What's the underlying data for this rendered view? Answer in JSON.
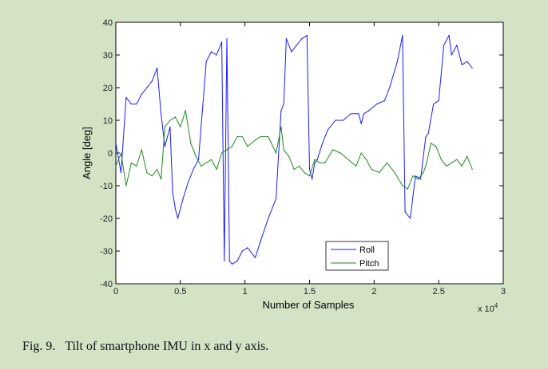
{
  "caption": {
    "number": "Fig. 9.",
    "text": "Tilt of smartphone IMU in x and y axis."
  },
  "chart_data": {
    "type": "line",
    "title": "",
    "xlabel": "Number of Samples",
    "ylabel": "Angle [deg]",
    "xlim": [
      0,
      30000
    ],
    "ylim": [
      -40,
      40
    ],
    "x_multiplier_label": "x 10",
    "x_multiplier_exp": "4",
    "x_ticks": [
      0,
      5000,
      10000,
      15000,
      20000,
      25000,
      30000
    ],
    "x_tick_labels": [
      "0",
      "0.5",
      "1",
      "1.5",
      "2",
      "2.5",
      "3"
    ],
    "y_ticks": [
      -40,
      -30,
      -20,
      -10,
      0,
      10,
      20,
      30,
      40
    ],
    "y_tick_labels": [
      "-40",
      "-30",
      "-20",
      "-10",
      "0",
      "10",
      "20",
      "30",
      "40"
    ],
    "grid": false,
    "legend_position": "bottom-center",
    "colors": {
      "roll": "#1a1aff",
      "pitch": "#1e8a1e"
    },
    "series": [
      {
        "name": "Roll",
        "x": [
          0,
          400,
          800,
          1200,
          1600,
          2000,
          2400,
          2800,
          3200,
          3500,
          3800,
          4200,
          4400,
          4600,
          4800,
          5200,
          5600,
          6000,
          6400,
          7000,
          7400,
          7800,
          8200,
          8400,
          8600,
          8800,
          9000,
          9400,
          9800,
          10200,
          10800,
          11200,
          11800,
          12400,
          12800,
          13000,
          13200,
          13600,
          14000,
          14400,
          14800,
          15000,
          15200,
          15400,
          15600,
          16000,
          16400,
          17000,
          17600,
          18200,
          18800,
          19000,
          19200,
          19600,
          20200,
          20800,
          21200,
          21800,
          22200,
          22400,
          22800,
          23200,
          23600,
          24000,
          24200,
          24600,
          25000,
          25400,
          25800,
          26000,
          26400,
          26800,
          27200,
          27600
        ],
        "values": [
          3,
          -6,
          17,
          15,
          15,
          18,
          20,
          22,
          26,
          12,
          2,
          8,
          -12,
          -17,
          -20,
          -14,
          -9,
          -5,
          -2,
          28,
          31,
          30,
          34,
          -33,
          35,
          -33,
          -34,
          -33,
          -30,
          -29,
          -32,
          -27,
          -20,
          -14,
          13,
          15,
          35,
          31,
          33,
          35,
          36,
          -5,
          -8,
          -3,
          -2,
          3,
          7,
          10,
          10,
          12,
          12,
          9,
          12,
          13,
          15,
          16,
          20,
          28,
          36,
          -18,
          -20,
          -7,
          -8,
          5,
          6,
          15,
          16,
          33,
          36,
          30,
          33,
          27,
          28,
          26
        ]
      },
      {
        "name": "Pitch",
        "x": [
          0,
          400,
          800,
          1200,
          1600,
          2000,
          2400,
          2800,
          3200,
          3500,
          3800,
          4200,
          4600,
          5000,
          5400,
          5800,
          6200,
          6600,
          7000,
          7400,
          7800,
          8200,
          8600,
          9000,
          9400,
          9800,
          10200,
          10800,
          11200,
          11800,
          12400,
          12800,
          13000,
          13400,
          13800,
          14200,
          14600,
          15000,
          15400,
          15800,
          16200,
          16800,
          17400,
          18000,
          18600,
          19000,
          19400,
          19800,
          20400,
          21000,
          21600,
          22200,
          22600,
          23000,
          23400,
          23800,
          24000,
          24400,
          24800,
          25200,
          25600,
          26000,
          26400,
          26800,
          27200,
          27600
        ],
        "values": [
          -4,
          0,
          -10,
          -3,
          -4,
          1,
          -6,
          -7,
          -5,
          -8,
          8,
          10,
          11,
          8,
          13,
          3,
          -1,
          -4,
          -3,
          -2,
          -5,
          0,
          1,
          2,
          5,
          5,
          2,
          4,
          5,
          5,
          0,
          8,
          1,
          -1,
          -5,
          -4,
          -6,
          -7,
          -2,
          -3,
          -3,
          1,
          0,
          -2,
          -4,
          0,
          -2,
          -5,
          -6,
          -3,
          -6,
          -10,
          -11,
          -7,
          -8,
          -6,
          -4,
          3,
          2,
          -2,
          -4,
          -3,
          -2,
          -4,
          -1,
          -5
        ]
      }
    ]
  }
}
